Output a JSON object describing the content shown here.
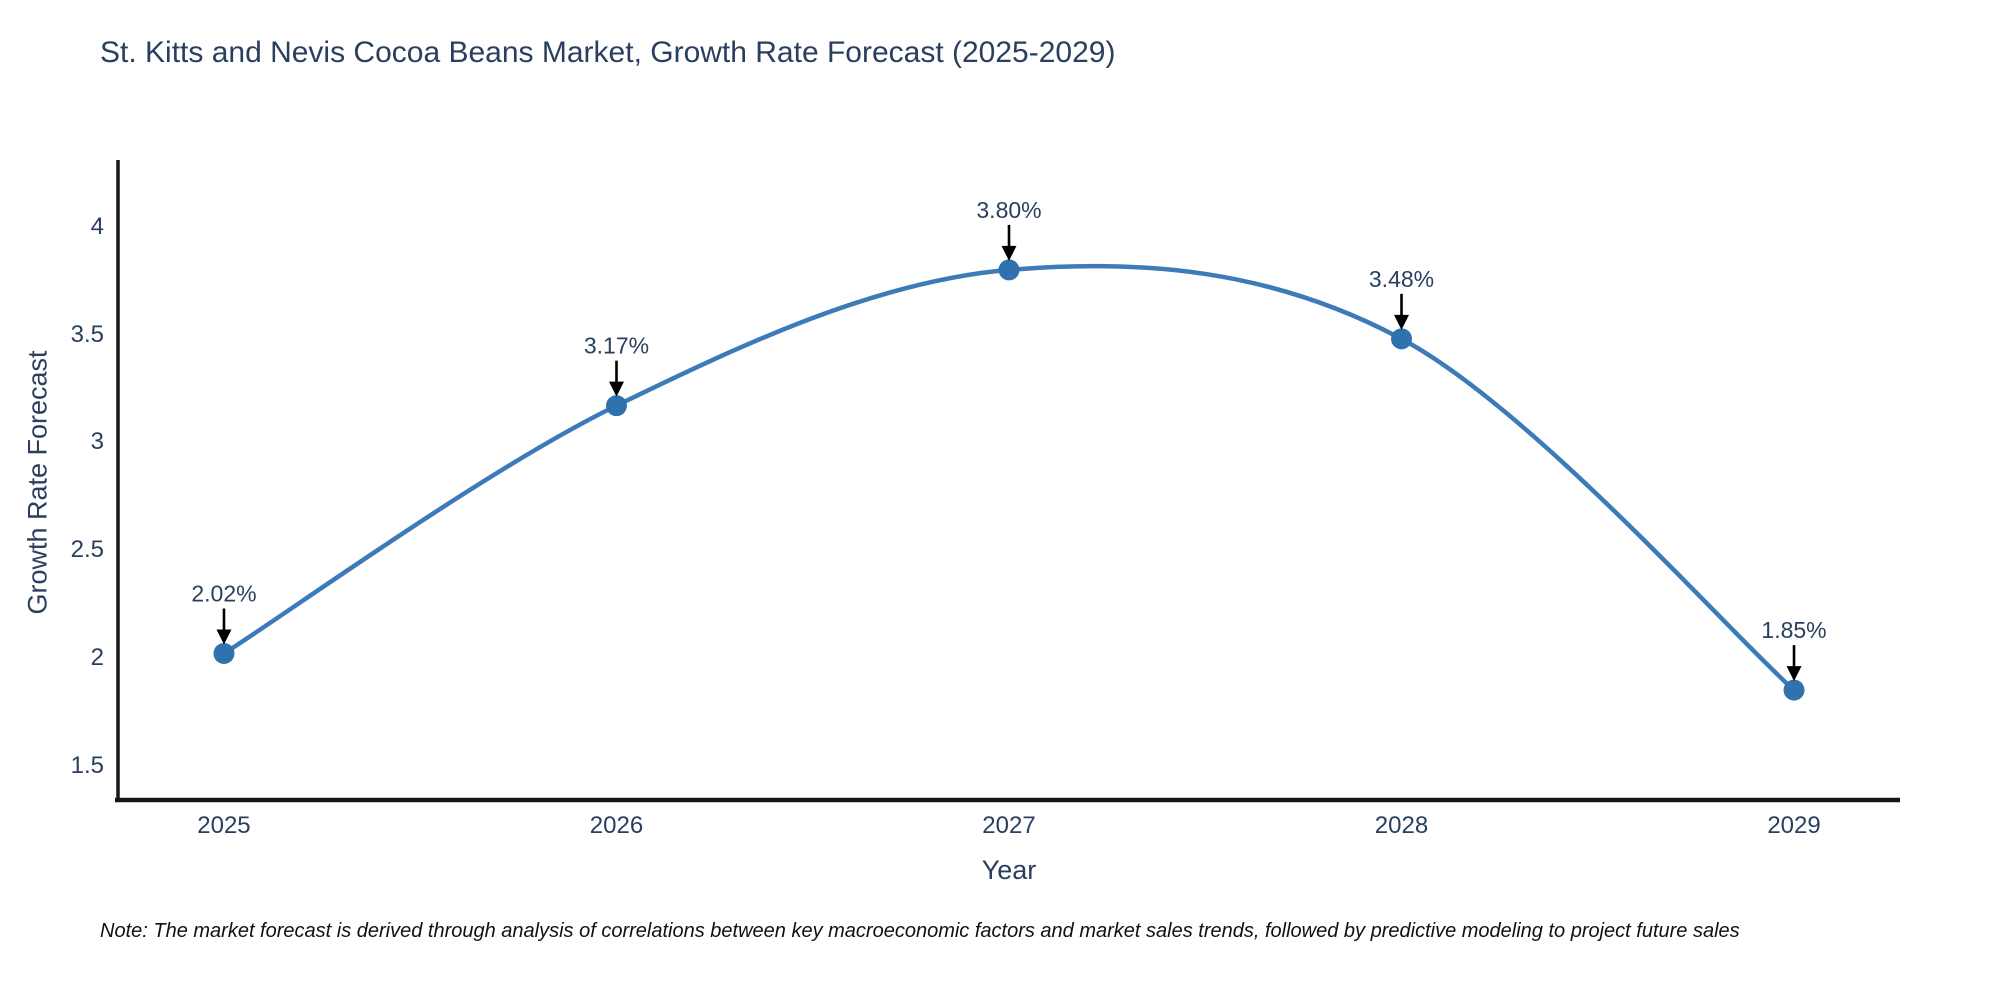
{
  "title": "St. Kitts and Nevis Cocoa Beans Market, Growth Rate Forecast (2025-2029)",
  "note": "Note: The market forecast is derived through analysis of correlations between key macroeconomic factors and market sales trends, followed by predictive modeling to project future sales",
  "chart_data": {
    "type": "line",
    "title": "St. Kitts and Nevis Cocoa Beans Market, Growth Rate Forecast (2025-2029)",
    "xlabel": "Year",
    "ylabel": "Growth Rate Forecast",
    "x": [
      2025,
      2026,
      2027,
      2028,
      2029
    ],
    "values": [
      2.02,
      3.17,
      3.8,
      3.48,
      1.85
    ],
    "point_labels": [
      "2.02%",
      "3.17%",
      "3.80%",
      "3.48%",
      "1.85%"
    ],
    "x_ticks": [
      "2025",
      "2026",
      "2027",
      "2028",
      "2029"
    ],
    "y_ticks": [
      1.5,
      2,
      2.5,
      3,
      3.5,
      4
    ],
    "xlim": [
      2024.73,
      2029.27
    ],
    "ylim": [
      1.34,
      4.31
    ],
    "line_shape": "spline",
    "grid": false,
    "legend": "none",
    "colors": {
      "line": "#3d7ab8",
      "marker": "#2f72ae",
      "axis": "#161616",
      "text": "#2a3f5f",
      "annotation_text": "#2a3f5f",
      "arrow": "#000000",
      "background": "#ffffff"
    }
  }
}
